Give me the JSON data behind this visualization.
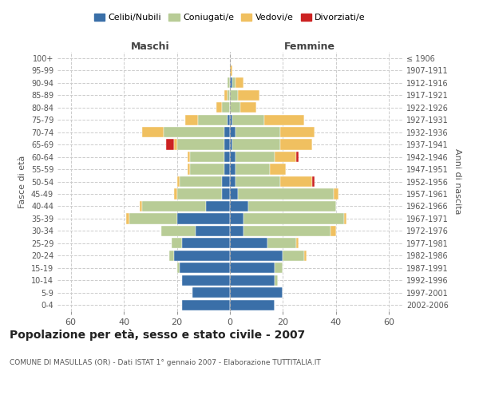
{
  "age_groups": [
    "0-4",
    "5-9",
    "10-14",
    "15-19",
    "20-24",
    "25-29",
    "30-34",
    "35-39",
    "40-44",
    "45-49",
    "50-54",
    "55-59",
    "60-64",
    "65-69",
    "70-74",
    "75-79",
    "80-84",
    "85-89",
    "90-94",
    "95-99",
    "100+"
  ],
  "birth_years": [
    "2002-2006",
    "1997-2001",
    "1992-1996",
    "1987-1991",
    "1982-1986",
    "1977-1981",
    "1972-1976",
    "1967-1971",
    "1962-1966",
    "1957-1961",
    "1952-1956",
    "1947-1951",
    "1942-1946",
    "1937-1941",
    "1932-1936",
    "1927-1931",
    "1922-1926",
    "1917-1921",
    "1912-1916",
    "1907-1911",
    "≤ 1906"
  ],
  "male": {
    "celibi": [
      18,
      14,
      18,
      19,
      21,
      18,
      13,
      20,
      9,
      3,
      3,
      2,
      2,
      2,
      2,
      1,
      0,
      0,
      0,
      0,
      0
    ],
    "coniugati": [
      0,
      0,
      0,
      1,
      2,
      4,
      13,
      18,
      24,
      17,
      16,
      13,
      13,
      18,
      23,
      11,
      3,
      1,
      1,
      0,
      0
    ],
    "vedovi": [
      0,
      0,
      0,
      0,
      0,
      0,
      0,
      1,
      1,
      1,
      1,
      1,
      1,
      1,
      8,
      5,
      2,
      1,
      0,
      0,
      0
    ],
    "divorziati": [
      0,
      0,
      0,
      0,
      0,
      0,
      0,
      0,
      0,
      0,
      0,
      0,
      0,
      3,
      0,
      0,
      0,
      0,
      0,
      0,
      0
    ]
  },
  "female": {
    "nubili": [
      17,
      20,
      17,
      17,
      20,
      14,
      5,
      5,
      7,
      3,
      2,
      2,
      2,
      1,
      2,
      1,
      0,
      0,
      1,
      0,
      0
    ],
    "coniugate": [
      0,
      0,
      1,
      3,
      8,
      11,
      33,
      38,
      33,
      36,
      17,
      13,
      15,
      18,
      17,
      12,
      4,
      3,
      1,
      0,
      0
    ],
    "vedove": [
      0,
      0,
      0,
      0,
      1,
      1,
      2,
      1,
      0,
      2,
      12,
      6,
      8,
      12,
      13,
      15,
      6,
      8,
      3,
      1,
      0
    ],
    "divorziate": [
      0,
      0,
      0,
      0,
      0,
      0,
      0,
      0,
      0,
      0,
      1,
      0,
      1,
      0,
      0,
      0,
      0,
      0,
      0,
      0,
      0
    ]
  },
  "colors": {
    "celibi": "#3a6fa8",
    "coniugati": "#b8cc96",
    "vedovi": "#f0c060",
    "divorziati": "#cc2222"
  },
  "xlim": 65,
  "title": "Popolazione per età, sesso e stato civile - 2007",
  "subtitle": "COMUNE DI MASULLAS (OR) - Dati ISTAT 1° gennaio 2007 - Elaborazione TUTTITALIA.IT",
  "ylabel_left": "Fasce di età",
  "ylabel_right": "Anni di nascita",
  "xlabel_left": "Maschi",
  "xlabel_right": "Femmine"
}
